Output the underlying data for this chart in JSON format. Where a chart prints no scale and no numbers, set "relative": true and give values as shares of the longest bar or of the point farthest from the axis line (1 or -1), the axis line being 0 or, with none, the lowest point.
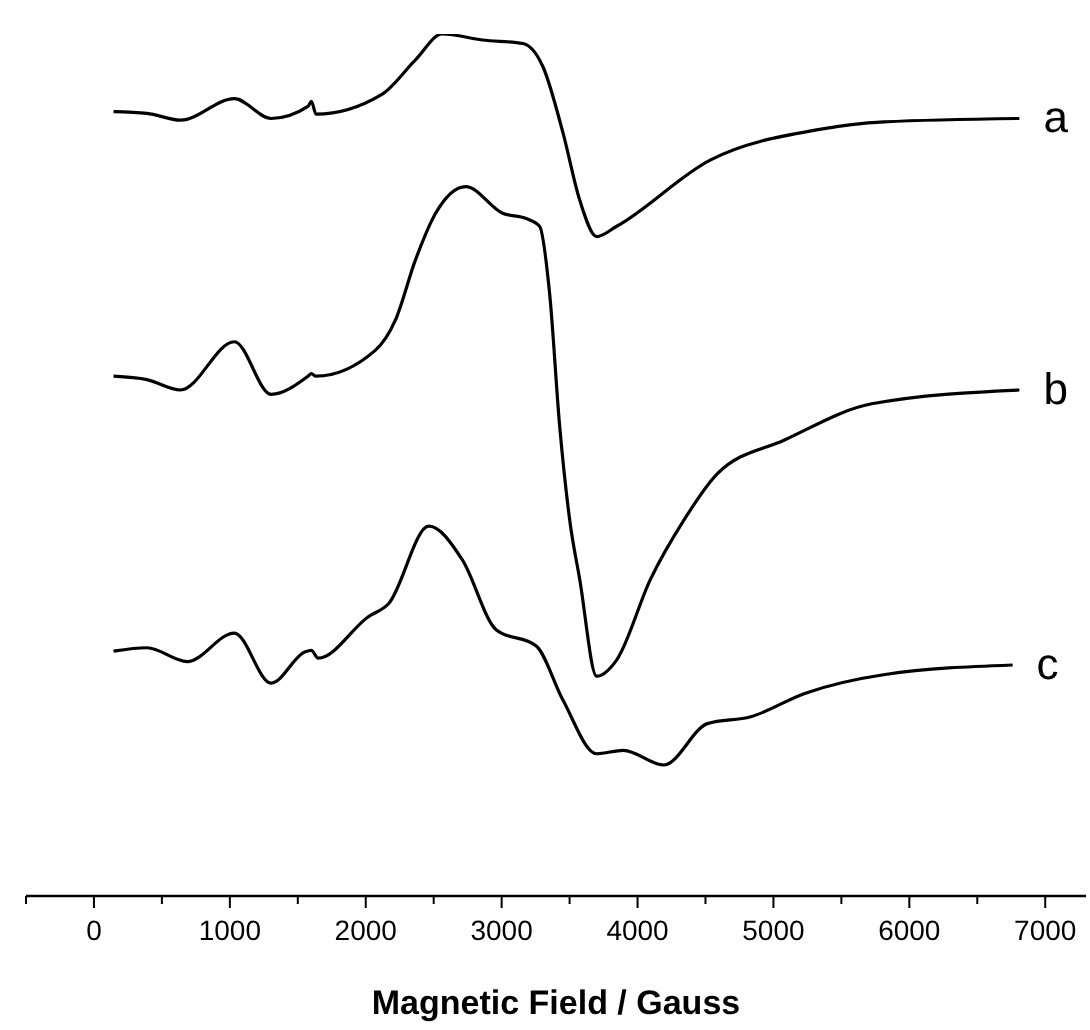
{
  "chart_data": {
    "type": "line",
    "xlabel": "Magnetic Field / Gauss",
    "relative": true,
    "marker": "none",
    "line_style": "solid",
    "xlim": [
      -500,
      7300
    ],
    "xticks": [
      {
        "value": -500,
        "label": null
      },
      0,
      {
        "value": 500,
        "label": null
      },
      1000,
      {
        "value": 1500,
        "label": null
      },
      2000,
      {
        "value": 2500,
        "label": null
      },
      3000,
      {
        "value": 3500,
        "label": null
      },
      4000,
      {
        "value": 4500,
        "label": null
      },
      5000,
      {
        "value": 5500,
        "label": null
      },
      6000,
      {
        "value": 6500,
        "label": null
      },
      7000
    ],
    "series": [
      {
        "name": "a",
        "color": "#000000",
        "x": [
          144,
          390,
          637,
          1033,
          1304,
          1575,
          1600,
          1634,
          2119,
          2366,
          2563,
          2859,
          3156,
          3304,
          3452,
          3575,
          3699,
          3847,
          4538,
          5328,
          5817,
          6810
        ],
        "values": [
          0.91,
          0.908,
          0.9,
          0.925,
          0.902,
          0.916,
          0.922,
          0.907,
          0.93,
          0.97,
          1.0,
          0.993,
          0.989,
          0.962,
          0.885,
          0.807,
          0.765,
          0.777,
          0.854,
          0.889,
          0.898,
          0.902
        ]
      },
      {
        "name": "b",
        "color": "#000000",
        "x": [
          144,
          390,
          637,
          1033,
          1304,
          1575,
          1600,
          1634,
          2070,
          2218,
          2366,
          2514,
          2736,
          3007,
          3181,
          3279,
          3353,
          3427,
          3501,
          3575,
          3699,
          3847,
          4094,
          4341,
          4588,
          5082,
          5723,
          6810
        ],
        "values": [
          0.603,
          0.599,
          0.587,
          0.643,
          0.582,
          0.603,
          0.606,
          0.603,
          0.633,
          0.668,
          0.738,
          0.792,
          0.823,
          0.792,
          0.786,
          0.777,
          0.699,
          0.545,
          0.436,
          0.367,
          0.255,
          0.274,
          0.367,
          0.436,
          0.49,
          0.529,
          0.571,
          0.587
        ]
      },
      {
        "name": "c",
        "color": "#000000",
        "x": [
          144,
          390,
          686,
          1033,
          1304,
          1551,
          1600,
          1649,
          2019,
          2168,
          2464,
          2711,
          2959,
          3255,
          3452,
          3699,
          3896,
          4193,
          4514,
          4834,
          5230,
          5822,
          6760
        ],
        "values": [
          0.284,
          0.288,
          0.272,
          0.305,
          0.247,
          0.283,
          0.285,
          0.276,
          0.324,
          0.339,
          0.429,
          0.39,
          0.309,
          0.29,
          0.227,
          0.165,
          0.169,
          0.152,
          0.2,
          0.208,
          0.235,
          0.257,
          0.268
        ]
      }
    ]
  }
}
